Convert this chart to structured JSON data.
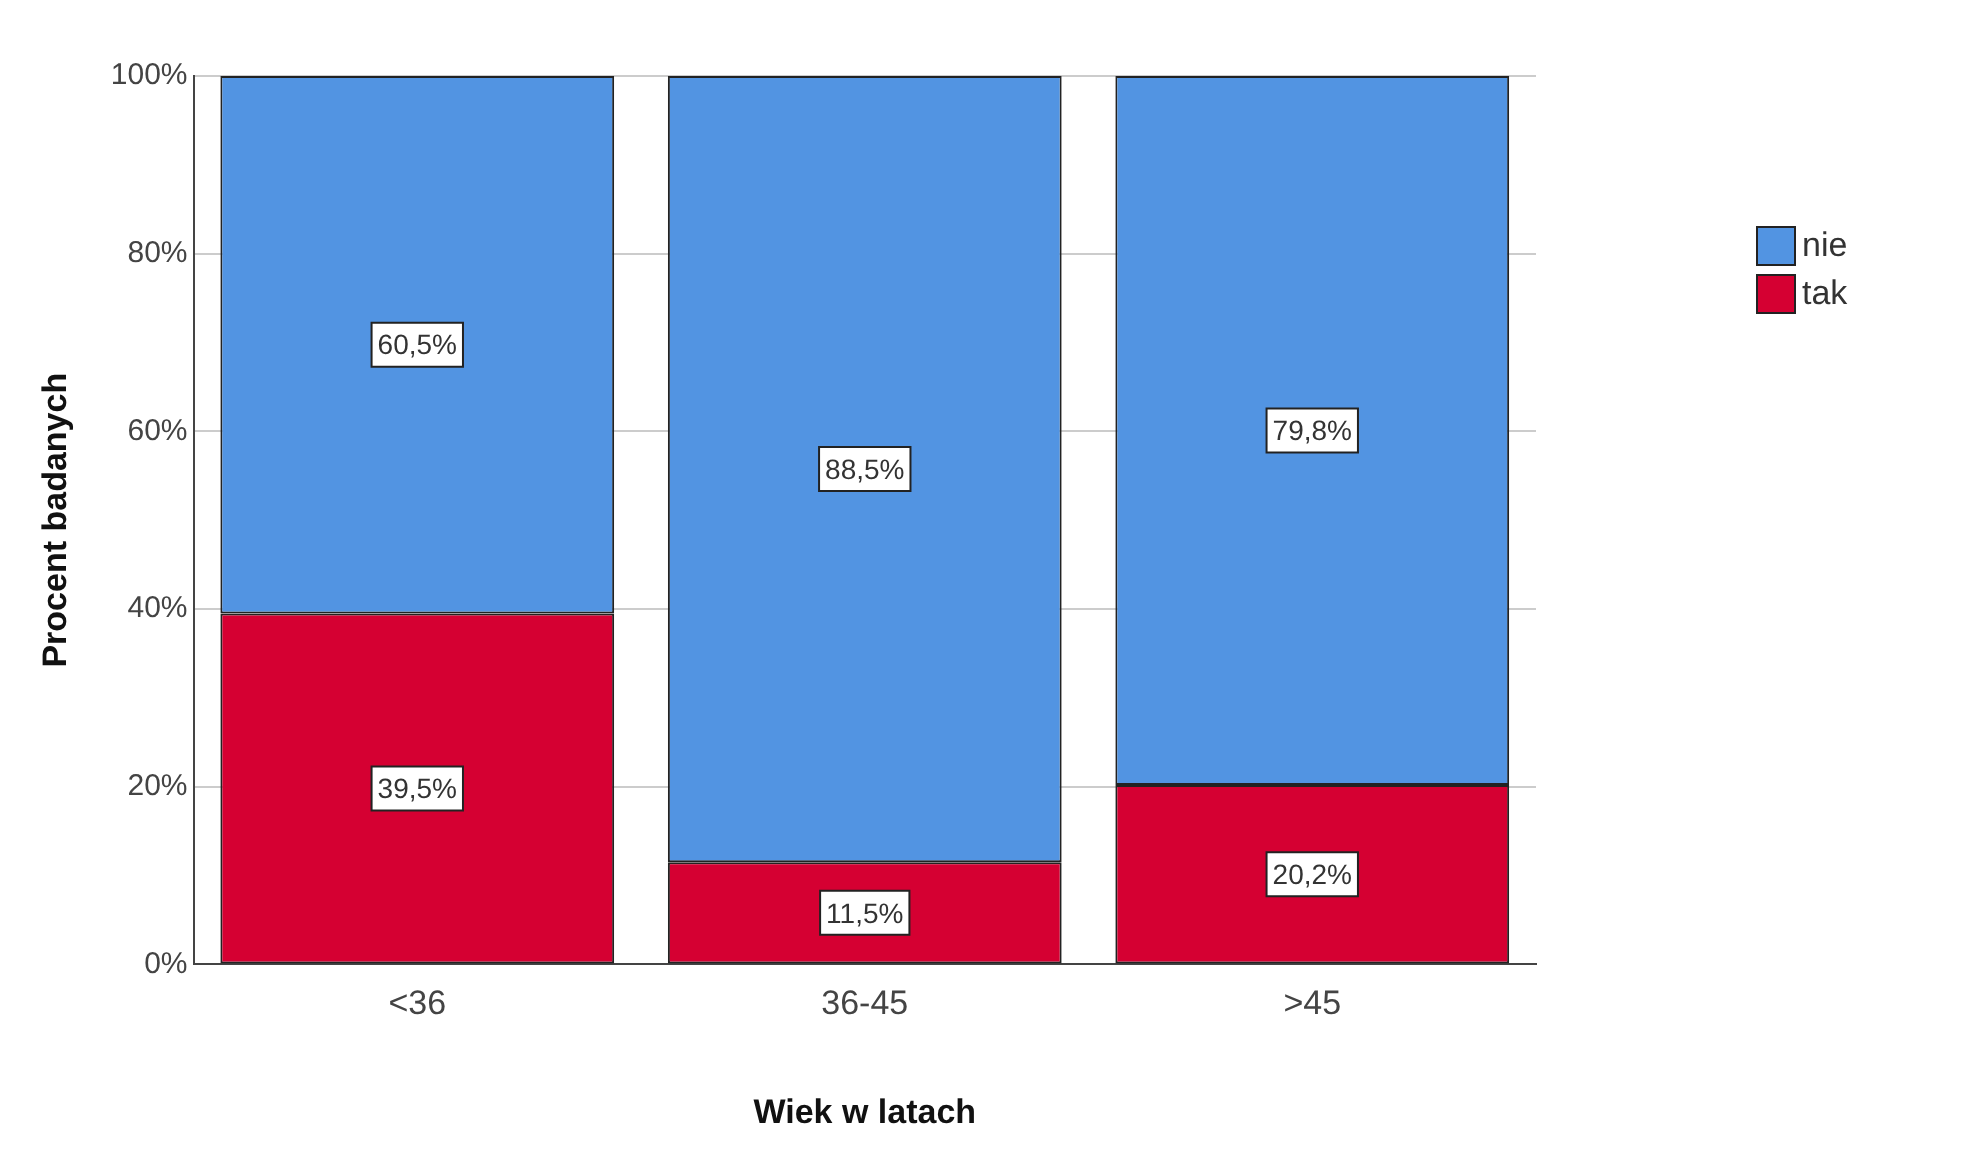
{
  "chart_data": {
    "type": "bar",
    "stacked": true,
    "xlabel": "Wiek w latach",
    "ylabel": "Procent badanych",
    "categories": [
      "<36",
      "36-45",
      ">45"
    ],
    "series": [
      {
        "name": "tak",
        "color": "#d50032",
        "values": [
          39.5,
          11.5,
          20.2
        ],
        "value_labels": [
          "39,5%",
          "11,5%",
          "20,2%"
        ]
      },
      {
        "name": "nie",
        "color": "#5294e2",
        "values": [
          60.5,
          88.5,
          79.8
        ],
        "value_labels": [
          "60,5%",
          "88,5%",
          "79,8%"
        ]
      }
    ],
    "ylim": [
      0,
      100
    ],
    "yticks": [
      {
        "value": 0,
        "label": "0%"
      },
      {
        "value": 20,
        "label": "20%"
      },
      {
        "value": 40,
        "label": "40%"
      },
      {
        "value": 60,
        "label": "60%"
      },
      {
        "value": 80,
        "label": "80%"
      },
      {
        "value": 100,
        "label": "100%"
      }
    ],
    "grid": "y",
    "legend": "top right"
  }
}
